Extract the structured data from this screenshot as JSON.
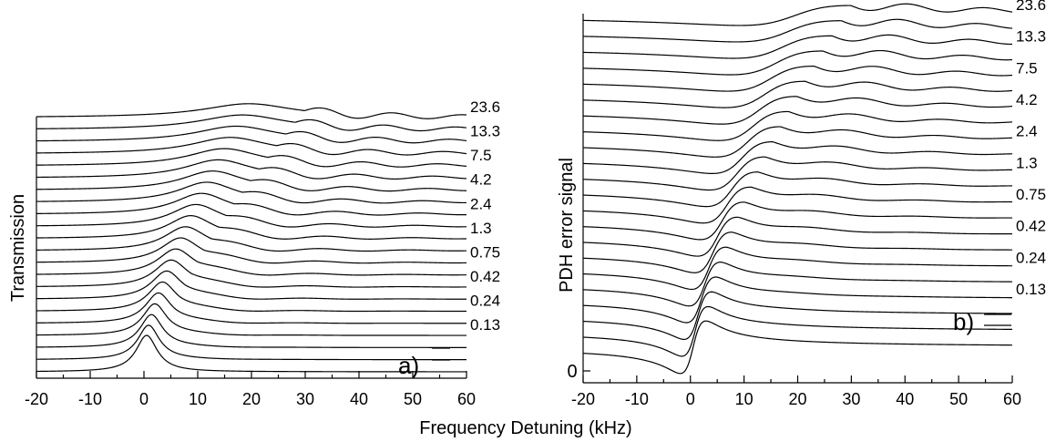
{
  "figure": {
    "xlabel": "Frequency Detuning (kHz)"
  },
  "chart_data": [
    {
      "type": "line",
      "panel_label": "a)",
      "title": "",
      "xlabel": "Frequency Detuning (kHz)",
      "ylabel": "Transmission",
      "xlim": [
        -20,
        60
      ],
      "xticks": [
        -20,
        -10,
        0,
        10,
        20,
        30,
        40,
        50,
        60
      ],
      "grid": false,
      "legend": "none",
      "trace_count": 22,
      "trace_labels": [
        "23.6",
        "13.3",
        "7.5",
        "4.2",
        "2.4",
        "1.3",
        "0.75",
        "0.42",
        "0.24",
        "0.13"
      ],
      "y_tick_labels": []
    },
    {
      "type": "line",
      "panel_label": "b)",
      "title": "",
      "xlabel": "Frequency Detuning (kHz)",
      "ylabel": "PDH error signal",
      "xlim": [
        -20,
        60
      ],
      "xticks": [
        -20,
        -10,
        0,
        10,
        20,
        30,
        40,
        50,
        60
      ],
      "grid": false,
      "legend": "none",
      "trace_count": 22,
      "trace_labels": [
        "23.6",
        "13.3",
        "7.5",
        "4.2",
        "2.4",
        "1.3",
        "0.75",
        "0.42",
        "0.24",
        "0.13"
      ],
      "y_tick_labels": [
        "0"
      ]
    }
  ]
}
